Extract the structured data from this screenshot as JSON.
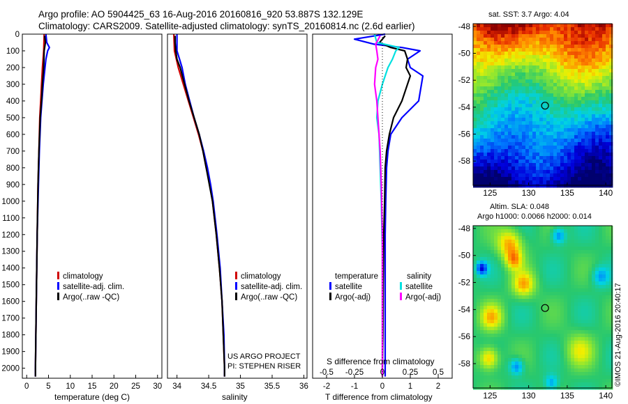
{
  "header": {
    "line1": "Argo profile: AO 5904425_63 16-Aug-2016 20160816_920 53.887S 132.129E",
    "line2": "Climatology: CARS2009. Satellite-adjusted climatology: synTS_20160814.nc (2.6d earlier)"
  },
  "credit": {
    "line1": "US ARGO PROJECT",
    "line2": "PI: STEPHEN RISER"
  },
  "watermark": "©IMOS 21-Aug-2016 20:40:17",
  "colors": {
    "climatology": "#d00000",
    "satellite": "#0000ff",
    "argo": "#000000",
    "sat_s_diff": "#00e0e0",
    "argo_s_diff": "#ff00ff"
  },
  "chart_data": [
    {
      "type": "line",
      "xlabel": "temperature (deg C)",
      "ylabel": "",
      "xlim": [
        -1,
        31
      ],
      "ylim": [
        2060,
        0
      ],
      "xticks": [
        "0",
        "5",
        "10",
        "15",
        "20",
        "25",
        "30"
      ],
      "yticks": [
        "0",
        "100",
        "200",
        "300",
        "400",
        "500",
        "600",
        "700",
        "800",
        "900",
        "1000",
        "1100",
        "1200",
        "1300",
        "1400",
        "1500",
        "1600",
        "1700",
        "1800",
        "1900",
        "2000"
      ],
      "legend": [
        "climatology",
        "satellite-adj. clim.",
        "Argo(..raw -QC)"
      ],
      "series": [
        {
          "name": "climatology",
          "depth": [
            0,
            100,
            200,
            300,
            400,
            500,
            700,
            900,
            1200,
            1600,
            2000,
            2050
          ],
          "values": [
            4.0,
            3.9,
            3.6,
            3.4,
            3.2,
            3.0,
            2.8,
            2.6,
            2.4,
            2.2,
            2.0,
            2.0
          ]
        },
        {
          "name": "satellite-adj. clim.",
          "depth": [
            0,
            50,
            80,
            100,
            150,
            200,
            300,
            400,
            500,
            700,
            900,
            1200,
            1600,
            2000,
            2050
          ],
          "values": [
            4.4,
            4.6,
            5.2,
            4.8,
            4.4,
            4.2,
            3.8,
            3.5,
            3.2,
            2.9,
            2.7,
            2.4,
            2.2,
            2.0,
            2.0
          ]
        },
        {
          "name": "Argo(..raw -QC)",
          "depth": [
            10,
            50,
            100,
            200,
            300,
            400,
            500,
            700,
            900,
            1200,
            1600,
            2000,
            2050
          ],
          "values": [
            4.1,
            4.3,
            4.0,
            3.9,
            3.6,
            3.4,
            3.1,
            2.8,
            2.6,
            2.4,
            2.2,
            2.0,
            2.0
          ]
        }
      ]
    },
    {
      "type": "line",
      "xlabel": "salinity",
      "xlim": [
        33.85,
        36.05
      ],
      "ylim": [
        2060,
        0
      ],
      "xticks": [
        "34",
        "34.5",
        "35",
        "35.5",
        "36"
      ],
      "legend": [
        "climatology",
        "satellite-adj. clim.",
        "Argo(..raw -QC)"
      ],
      "series": [
        {
          "name": "climatology",
          "depth": [
            0,
            100,
            200,
            300,
            400,
            500,
            600,
            700,
            800,
            900,
            1000,
            1200,
            1400,
            1600,
            1800,
            2000,
            2050
          ],
          "values": [
            33.95,
            33.96,
            34.02,
            34.1,
            34.18,
            34.26,
            34.34,
            34.41,
            34.46,
            34.52,
            34.56,
            34.62,
            34.67,
            34.71,
            34.73,
            34.75,
            34.75
          ]
        },
        {
          "name": "satellite-adj. clim.",
          "depth": [
            0,
            50,
            100,
            150,
            200,
            300,
            400,
            500,
            600,
            700,
            800,
            900,
            1000,
            1200,
            1400,
            1600,
            1800,
            2000,
            2050
          ],
          "values": [
            34.0,
            34.0,
            34.0,
            34.04,
            34.08,
            34.13,
            34.2,
            34.27,
            34.35,
            34.42,
            34.48,
            34.53,
            34.57,
            34.63,
            34.68,
            34.71,
            34.74,
            34.75,
            34.75
          ]
        },
        {
          "name": "Argo(..raw -QC)",
          "depth": [
            10,
            50,
            100,
            150,
            200,
            300,
            400,
            500,
            600,
            700,
            800,
            900,
            1000,
            1200,
            1400,
            1600,
            1800,
            2000,
            2050
          ],
          "values": [
            33.97,
            33.97,
            33.98,
            34.0,
            34.05,
            34.12,
            34.19,
            34.27,
            34.35,
            34.41,
            34.46,
            34.51,
            34.56,
            34.62,
            34.67,
            34.71,
            34.73,
            34.75,
            34.75
          ]
        }
      ]
    },
    {
      "type": "line",
      "xlabel": "T difference from climatology",
      "top_xlabel": "S difference from climatology",
      "xlim": [
        -2.5,
        2.5
      ],
      "ylim": [
        2060,
        0
      ],
      "xticks": [
        "-2",
        "-1",
        "0",
        "1",
        "2"
      ],
      "top_xticks": [
        "-0.5",
        "-0.25",
        "0",
        "0.25",
        "0.5"
      ],
      "legend": {
        "temperature_header": "temperature",
        "salinity_header": "salinity",
        "temperature": [
          "satellite",
          "Argo(-adj)"
        ],
        "salinity": [
          "satellite",
          "Argo(-adj)"
        ]
      },
      "series": [
        {
          "name": "satellite",
          "depth": [
            0,
            30,
            60,
            80,
            100,
            150,
            200,
            250,
            300,
            400,
            500,
            600,
            700,
            800,
            1000,
            1200,
            1500,
            1800,
            2000,
            2050
          ],
          "values": [
            0.1,
            -1.0,
            -0.3,
            0.7,
            1.35,
            0.9,
            1.0,
            1.45,
            1.4,
            1.3,
            0.7,
            0.3,
            0.2,
            0.15,
            0.12,
            0.1,
            0.1,
            0.1,
            0.1,
            0.1
          ]
        },
        {
          "name": "Argo(-adj)",
          "depth": [
            10,
            50,
            80,
            100,
            150,
            200,
            250,
            300,
            400,
            500,
            600,
            700,
            800,
            1000,
            1200,
            1500,
            1800,
            2000,
            2050
          ],
          "values": [
            0.1,
            -0.1,
            0.3,
            0.8,
            0.9,
            0.85,
            1.0,
            0.9,
            0.7,
            0.4,
            0.25,
            0.15,
            0.1,
            0.08,
            0.05,
            0.03,
            0.02,
            0.0,
            0.0
          ]
        },
        {
          "name": "satellite",
          "depth": [
            0,
            50,
            80,
            100,
            150,
            200,
            300,
            400,
            500,
            600,
            800,
            1000,
            1300,
            1600,
            2000,
            2050
          ],
          "values": [
            -0.07,
            -0.05,
            0.15,
            0.12,
            0.09,
            0.05,
            0.0,
            -0.04,
            -0.05,
            -0.03,
            -0.02,
            -0.01,
            0.0,
            0.0,
            0.0,
            0.0
          ]
        },
        {
          "name": "Argo(-adj)",
          "depth": [
            10,
            60,
            100,
            150,
            200,
            300,
            400,
            500,
            700,
            900,
            1200,
            1600,
            2000,
            2050
          ],
          "values": [
            -0.02,
            -0.06,
            -0.05,
            -0.04,
            -0.06,
            -0.07,
            -0.05,
            -0.04,
            -0.02,
            -0.01,
            0.0,
            0.0,
            0.0,
            0.0
          ]
        }
      ]
    },
    {
      "type": "heatmap",
      "title": "sat. SST: 3.7 Argo: 4.04",
      "xlim": [
        122.8,
        140.8
      ],
      "ylim": [
        -59.8,
        -47.8
      ],
      "xticks": [
        "125",
        "130",
        "135",
        "140"
      ],
      "yticks": [
        "-48",
        "-50",
        "-52",
        "-54",
        "-56",
        "-58"
      ],
      "marker": {
        "lon": 132.129,
        "lat": -53.887
      }
    },
    {
      "type": "heatmap",
      "title_line1": "Altim. SLA: 0.048",
      "title_line2": "Argo h1000: 0.0066 h2000: 0.014",
      "xlim": [
        122.8,
        140.8
      ],
      "ylim": [
        -59.8,
        -47.8
      ],
      "xticks": [
        "125",
        "130",
        "135",
        "140"
      ],
      "yticks": [
        "-48",
        "-50",
        "-52",
        "-54",
        "-56",
        "-58"
      ],
      "marker": {
        "lon": 132.129,
        "lat": -53.887
      }
    }
  ]
}
